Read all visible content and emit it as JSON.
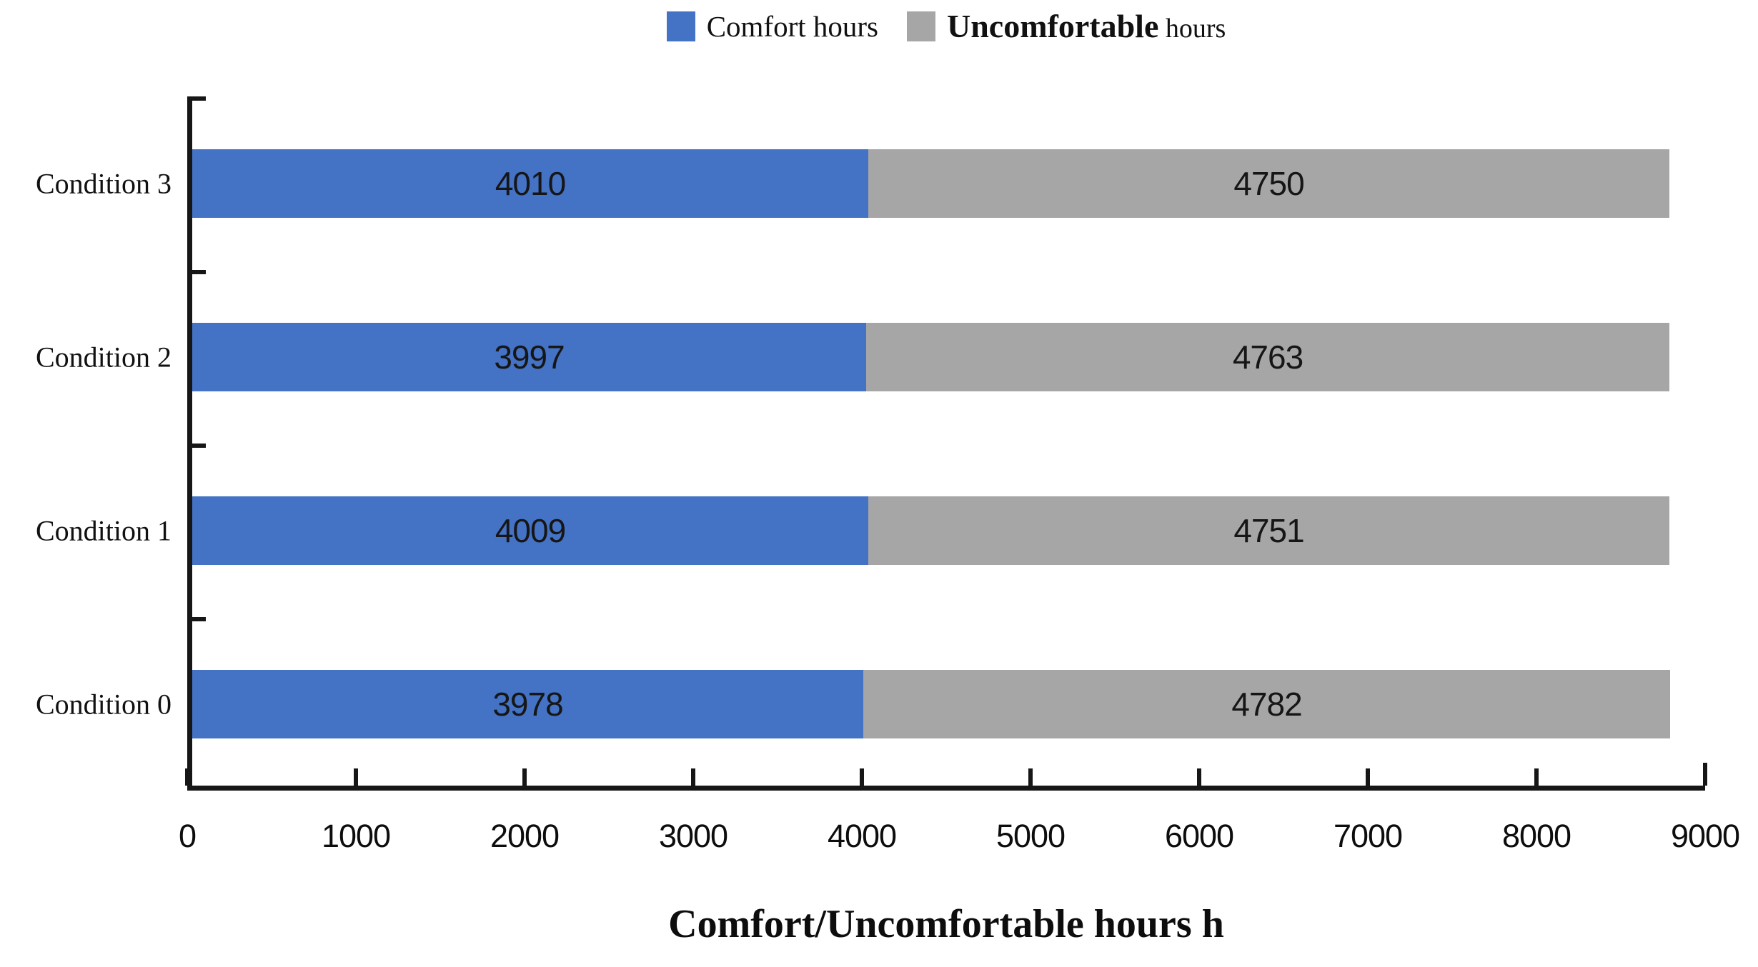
{
  "chart_data": {
    "type": "bar",
    "orientation": "horizontal",
    "stacked": true,
    "title": "",
    "xlabel": "Comfort/Uncomfortable hours h",
    "ylabel": "",
    "xlim": [
      0,
      9000
    ],
    "xticks": [
      0,
      1000,
      2000,
      3000,
      4000,
      5000,
      6000,
      7000,
      8000,
      9000
    ],
    "grid": false,
    "legend_position": "top-center",
    "categories": [
      "Condition 3",
      "Condition 2",
      "Condition 1",
      "Condition 0"
    ],
    "series": [
      {
        "name": "Comfort hours",
        "color": "#4472c4",
        "values": [
          4010,
          3997,
          4009,
          3978
        ]
      },
      {
        "name": "Uncomfortable hours",
        "color": "#a6a6a6",
        "values": [
          4750,
          4763,
          4751,
          4782
        ]
      }
    ],
    "bar_value_labels_shown": true,
    "colors": {
      "comfort": "#4472c4",
      "uncomfortable": "#a6a6a6",
      "axis": "#161616",
      "text": "#111111"
    }
  }
}
